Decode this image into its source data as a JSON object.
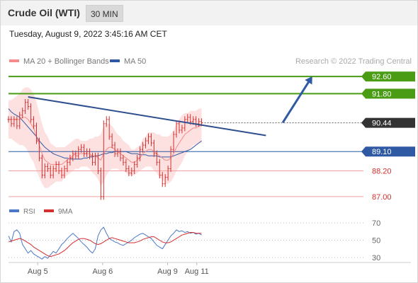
{
  "header": {
    "title": "Crude Oil (WTI)",
    "interval": "30 MIN"
  },
  "timestamp": "Tuesday, August 9, 2022 3:45:16 AM CET",
  "legend": {
    "ma20": "MA 20 + Bollinger Bands",
    "ma50": "MA 50"
  },
  "rsi_legend": {
    "rsi": "RSI",
    "ma": "9MA"
  },
  "credit": "Research © 2022 Trading Central",
  "colors": {
    "price": "#d32f2f",
    "ma20": "#f48a8a",
    "band": "#fde0e0",
    "ma50": "#2f5aa3",
    "trendline": "#2f4f8f",
    "resistance": "#4a9c14",
    "pivot": "#2f5aa3",
    "support": "#f4a0a0",
    "support_text": "#d32f2f",
    "current": "#333333"
  },
  "chart_data": [
    {
      "type": "line",
      "name": "price_panel",
      "ylim": [
        86.6,
        93.2
      ],
      "x": [
        "Aug 5",
        "Aug 6",
        "Aug 9",
        "Aug 11"
      ],
      "levels": [
        {
          "label": "92.60",
          "value": 92.6,
          "kind": "resistance"
        },
        {
          "label": "91.80",
          "value": 91.8,
          "kind": "resistance"
        },
        {
          "label": "90.44",
          "value": 90.44,
          "kind": "current"
        },
        {
          "label": "89.10",
          "value": 89.1,
          "kind": "pivot"
        },
        {
          "label": "88.20",
          "value": 88.2,
          "kind": "support"
        },
        {
          "label": "87.00",
          "value": 87.0,
          "kind": "support"
        }
      ],
      "price": [
        90.6,
        90.4,
        90.6,
        90.3,
        90.8,
        91.0,
        91.4,
        91.2,
        90.6,
        90.3,
        89.6,
        88.8,
        88.0,
        88.4,
        88.3,
        88.0,
        88.3,
        88.5,
        88.2,
        88.0,
        88.3,
        88.6,
        88.8,
        89.0,
        88.9,
        89.2,
        89.3,
        89.0,
        89.1,
        88.9,
        88.6,
        88.9,
        88.2,
        87.0,
        90.4,
        90.6,
        89.8,
        89.4,
        89.0,
        89.1,
        88.8,
        88.6,
        88.3,
        88.1,
        88.2,
        88.5,
        88.8,
        89.2,
        89.4,
        89.6,
        89.8,
        89.5,
        89.0,
        88.6,
        88.0,
        87.6,
        87.9,
        88.3,
        89.2,
        89.9,
        90.4,
        90.1,
        90.2,
        90.6,
        90.7,
        90.5,
        90.6,
        90.4,
        90.5,
        90.44
      ],
      "ma20": [
        90.6,
        90.6,
        90.6,
        90.6,
        90.6,
        90.7,
        90.7,
        90.6,
        90.4,
        90.2,
        89.8,
        89.4,
        89.0,
        88.7,
        88.6,
        88.5,
        88.5,
        88.5,
        88.5,
        88.5,
        88.6,
        88.7,
        88.8,
        88.9,
        89.0,
        89.0,
        89.0,
        89.0,
        89.0,
        89.0,
        88.9,
        88.9,
        88.8,
        88.7,
        89.0,
        89.2,
        89.3,
        89.3,
        89.2,
        89.1,
        89.0,
        88.9,
        88.8,
        88.7,
        88.6,
        88.6,
        88.7,
        88.8,
        89.0,
        89.1,
        89.2,
        89.2,
        89.1,
        89.0,
        88.9,
        88.8,
        88.7,
        88.7,
        88.8,
        89.0,
        89.3,
        89.5,
        89.7,
        89.9,
        90.0,
        90.1,
        90.2,
        90.2,
        90.3,
        90.3
      ],
      "band_width": [
        0.9,
        0.9,
        1.0,
        1.1,
        1.2,
        1.3,
        1.4,
        1.5,
        1.6,
        1.6,
        1.6,
        1.5,
        1.4,
        1.3,
        1.2,
        1.0,
        0.9,
        0.8,
        0.8,
        0.8,
        0.7,
        0.7,
        0.7,
        0.7,
        0.7,
        0.7,
        0.6,
        0.6,
        0.6,
        0.7,
        0.8,
        0.9,
        1.0,
        1.2,
        1.3,
        1.2,
        1.1,
        1.0,
        0.9,
        0.8,
        0.8,
        0.7,
        0.7,
        0.7,
        0.6,
        0.6,
        0.6,
        0.6,
        0.7,
        0.7,
        0.8,
        0.8,
        0.9,
        0.9,
        1.0,
        1.0,
        1.1,
        1.1,
        1.1,
        1.1,
        1.1,
        1.1,
        1.1,
        1.0,
        0.9,
        0.9,
        0.8,
        0.8,
        0.8,
        0.8
      ],
      "ma50": [
        91.1,
        90.95,
        90.85,
        90.78,
        90.7,
        90.55,
        90.4,
        90.25,
        90.1,
        89.95,
        89.8,
        89.6,
        89.45,
        89.3,
        89.2,
        89.1,
        89.0,
        88.95,
        88.9,
        88.85,
        88.8,
        88.8,
        88.75,
        88.75,
        88.75,
        88.75,
        88.75,
        88.8,
        88.8,
        88.85,
        88.85,
        88.9,
        88.9,
        88.95,
        89.0,
        89.0,
        89.05,
        89.05,
        89.1,
        89.1,
        89.1,
        89.1,
        89.1,
        89.05,
        89.0,
        89.0,
        89.0,
        88.95,
        88.95,
        88.95,
        88.9,
        88.9,
        88.9,
        88.9,
        88.85,
        88.85,
        88.85,
        88.85,
        88.85,
        88.9,
        88.95,
        89.0,
        89.05,
        89.1,
        89.15,
        89.2,
        89.3,
        89.4,
        89.5,
        89.6
      ],
      "trendline": {
        "from": {
          "x": 7,
          "y": 91.65
        },
        "to": {
          "x": 92,
          "y": 89.85
        }
      },
      "projection": {
        "from": {
          "x": 98,
          "y": 90.45
        },
        "to": {
          "x": 108,
          "y": 92.5
        }
      }
    },
    {
      "type": "line",
      "name": "rsi_panel",
      "ylim": [
        20,
        80
      ],
      "ticks": [
        70,
        50,
        30
      ],
      "rsi": [
        55,
        48,
        60,
        62,
        58,
        45,
        40,
        35,
        38,
        34,
        32,
        30,
        28,
        31,
        29,
        33,
        37,
        35,
        40,
        45,
        48,
        52,
        55,
        58,
        55,
        52,
        48,
        45,
        42,
        38,
        35,
        40,
        55,
        62,
        65,
        58,
        52,
        50,
        48,
        47,
        45,
        44,
        46,
        48,
        50,
        53,
        55,
        57,
        58,
        56,
        54,
        52,
        48,
        44,
        42,
        40,
        45,
        50,
        55,
        58,
        62,
        60,
        61,
        59,
        60,
        58,
        59,
        57,
        58,
        56
      ],
      "ma9": [
        48,
        49,
        50,
        51,
        52,
        51,
        49,
        47,
        45,
        42,
        40,
        38,
        36,
        34,
        32,
        31,
        32,
        33,
        34,
        36,
        38,
        41,
        44,
        47,
        49,
        51,
        52,
        52,
        51,
        50,
        48,
        46,
        45,
        46,
        48,
        50,
        52,
        53,
        52,
        51,
        50,
        49,
        48,
        47,
        47,
        47,
        48,
        49,
        51,
        52,
        53,
        54,
        54,
        52,
        50,
        48,
        47,
        47,
        48,
        50,
        52,
        54,
        56,
        57,
        58,
        59,
        59,
        58,
        58,
        58
      ]
    }
  ],
  "x_axis": {
    "labels": [
      {
        "text": "Aug 5",
        "slot": 18
      },
      {
        "text": "Aug 6",
        "slot": 58
      },
      {
        "text": "Aug 9",
        "slot": 98
      },
      {
        "text": "Aug 11",
        "slot": 116
      }
    ]
  }
}
